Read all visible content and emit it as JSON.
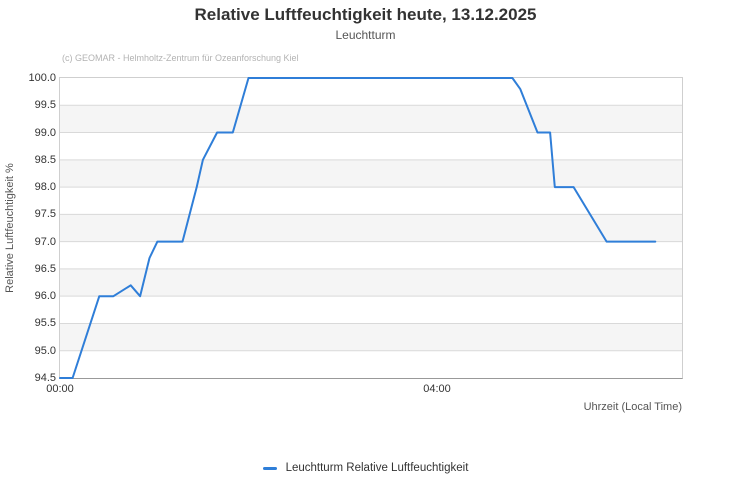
{
  "header": {
    "title": "Relative Luftfeuchtigkeit heute, 13.12.2025",
    "subtitle": "Leuchtturm"
  },
  "credit": "(c) GEOMAR - Helmholtz-Zentrum für Ozeanforschung Kiel",
  "colors": {
    "line": "#2F7ED8",
    "band": "#F5F5F5",
    "grid": "#D9D9D9",
    "plot_border": "#CFCFCF",
    "axis_line": "#999999",
    "tick_text": "#333333",
    "axis_title_text": "#555555",
    "title_text": "#333333",
    "subtitle_text": "#555555",
    "credit_text": "#B3B3B3"
  },
  "legend": {
    "items": [
      {
        "label": "Leuchtturm Relative Luftfeuchtigkeit",
        "color": "#2F7ED8"
      }
    ]
  },
  "chart_data": {
    "type": "line",
    "title": "Relative Luftfeuchtigkeit heute, 13.12.2025",
    "subtitle": "Leuchtturm",
    "xlabel": "Uhrzeit (Local Time)",
    "ylabel": "Relative Luftfeuchtigkeit %",
    "ylim": [
      94.5,
      100.0
    ],
    "ytick_step": 0.5,
    "ytick_decimals": 1,
    "xlim_minutes": [
      0,
      396
    ],
    "xticks": [
      {
        "minutes": 0,
        "label": "00:00"
      },
      {
        "minutes": 240,
        "label": "04:00"
      }
    ],
    "grid": "horizontal",
    "alternating_bands": true,
    "legend_position": "bottom-center",
    "series": [
      {
        "name": "Leuchtturm Relative Luftfeuchtigkeit",
        "color": "#2F7ED8",
        "points": [
          [
            "00:00",
            94.5
          ],
          [
            "00:08",
            94.5
          ],
          [
            "00:25",
            96.0
          ],
          [
            "00:34",
            96.0
          ],
          [
            "00:45",
            96.2
          ],
          [
            "00:51",
            96.0
          ],
          [
            "00:57",
            96.7
          ],
          [
            "01:02",
            97.0
          ],
          [
            "01:18",
            97.0
          ],
          [
            "01:27",
            98.0
          ],
          [
            "01:31",
            98.5
          ],
          [
            "01:40",
            99.0
          ],
          [
            "01:50",
            99.0
          ],
          [
            "02:00",
            100.0
          ],
          [
            "04:48",
            100.0
          ],
          [
            "04:53",
            99.8
          ],
          [
            "05:04",
            99.0
          ],
          [
            "05:12",
            99.0
          ],
          [
            "05:15",
            98.0
          ],
          [
            "05:27",
            98.0
          ],
          [
            "05:48",
            97.0
          ],
          [
            "06:19",
            97.0
          ]
        ]
      }
    ]
  }
}
